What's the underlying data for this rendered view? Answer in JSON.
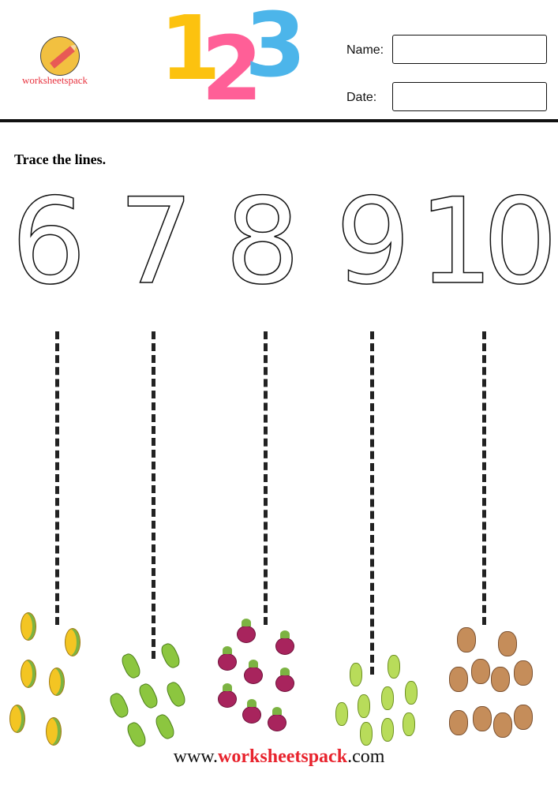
{
  "header": {
    "logo_text": "worksheetspack",
    "title_digits": [
      "1",
      "2",
      "3"
    ],
    "name_label": "Name:",
    "date_label": "Date:"
  },
  "instruction": "Trace the lines.",
  "numbers": [
    "6",
    "7",
    "8",
    "9",
    "10"
  ],
  "counts": [
    {
      "number": "6",
      "item": "corn",
      "count": 6
    },
    {
      "number": "7",
      "item": "cucumber",
      "count": 7
    },
    {
      "number": "8",
      "item": "beet",
      "count": 8
    },
    {
      "number": "9",
      "item": "zucchini",
      "count": 9
    },
    {
      "number": "10",
      "item": "potato",
      "count": 10
    }
  ],
  "footer": {
    "prefix": "www.",
    "brand": "worksheetspack",
    "suffix": ".com"
  },
  "colors": {
    "one": "#fcc20f",
    "two": "#ff5f97",
    "three": "#4cb5ea",
    "brand_red": "#e8232d"
  }
}
